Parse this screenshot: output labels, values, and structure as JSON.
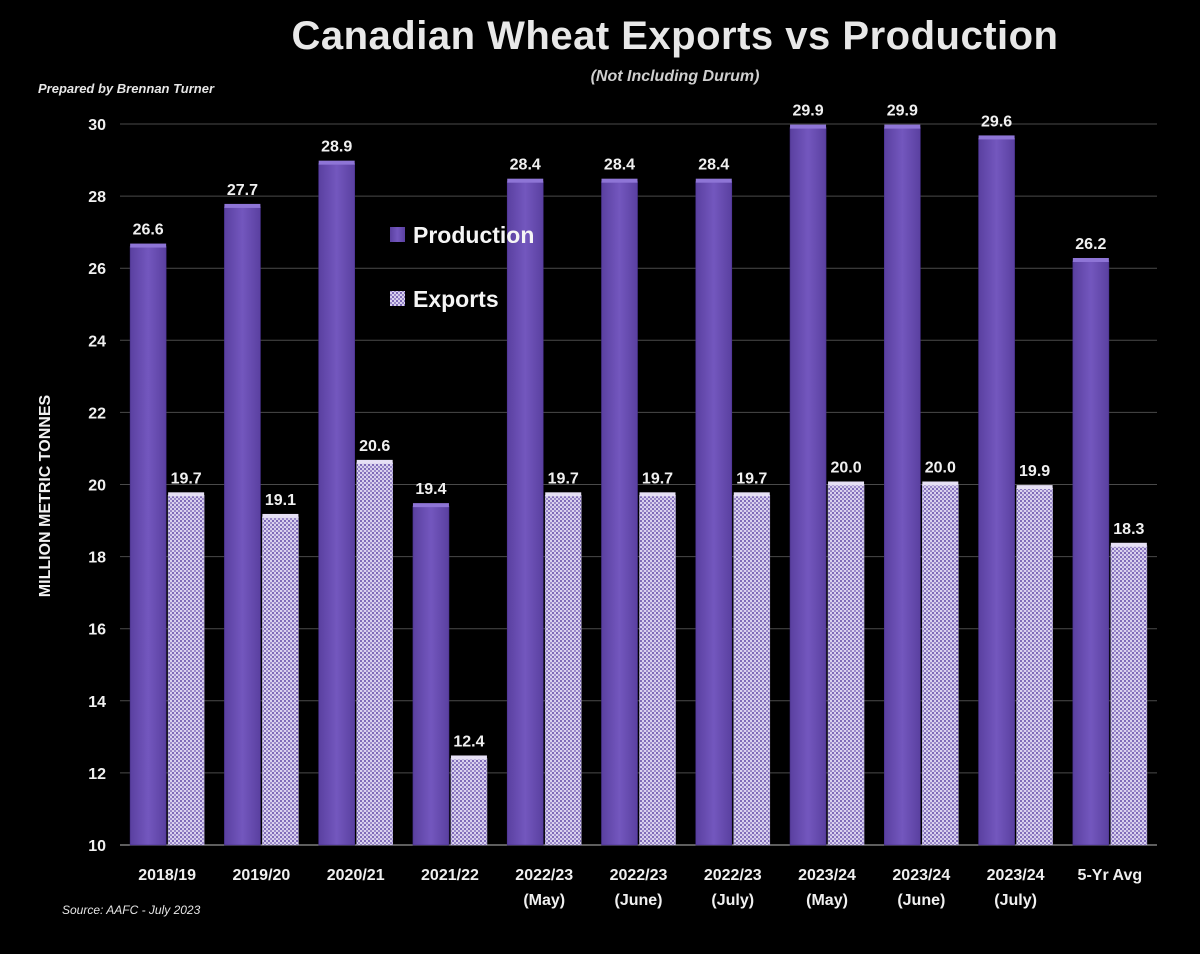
{
  "header": {
    "title": "Canadian Wheat Exports vs Production",
    "subtitle": "(Not Including Durum)",
    "prepared_by": "Prepared by Brennan Turner",
    "source": "Source: AAFC -  July 2023"
  },
  "colors": {
    "production": "#6b4fb0",
    "exports": "#c8c0e0",
    "background": "#000000",
    "grid": "#555555"
  },
  "chart_data": {
    "type": "bar",
    "title": "Canadian Wheat Exports vs Production",
    "subtitle": "(Not Including Durum)",
    "ylabel": "MILLION METRIC TONNES",
    "xlabel": "",
    "ylim": [
      10,
      30
    ],
    "yticks": [
      10,
      12,
      14,
      16,
      18,
      20,
      22,
      24,
      26,
      28,
      30
    ],
    "grid": true,
    "legend_position": "top-center",
    "categories": [
      [
        "2018/19"
      ],
      [
        "2019/20"
      ],
      [
        "2020/21"
      ],
      [
        "2021/22"
      ],
      [
        "2022/23",
        "(May)"
      ],
      [
        "2022/23",
        "(June)"
      ],
      [
        "2022/23",
        "(July)"
      ],
      [
        "2023/24",
        "(May)"
      ],
      [
        "2023/24",
        "(June)"
      ],
      [
        "2023/24",
        "(July)"
      ],
      [
        "5-Yr Avg"
      ]
    ],
    "series": [
      {
        "name": "Production",
        "values": [
          26.6,
          27.7,
          28.9,
          19.4,
          28.4,
          28.4,
          28.4,
          29.9,
          29.9,
          29.6,
          26.2
        ],
        "labels": [
          "26.6",
          "27.7",
          "28.9",
          "19.4",
          "28.4",
          "28.4",
          "28.4",
          "29.9",
          "29.9",
          "29.6",
          "26.2"
        ]
      },
      {
        "name": "Exports",
        "values": [
          19.7,
          19.1,
          20.6,
          12.4,
          19.7,
          19.7,
          19.7,
          20.0,
          20.0,
          19.9,
          18.3
        ],
        "labels": [
          "19.7",
          "19.1",
          "20.6",
          "12.4",
          "19.7",
          "19.7",
          "19.7",
          "20.0",
          "20.0",
          "19.9",
          "18.3"
        ]
      }
    ]
  }
}
